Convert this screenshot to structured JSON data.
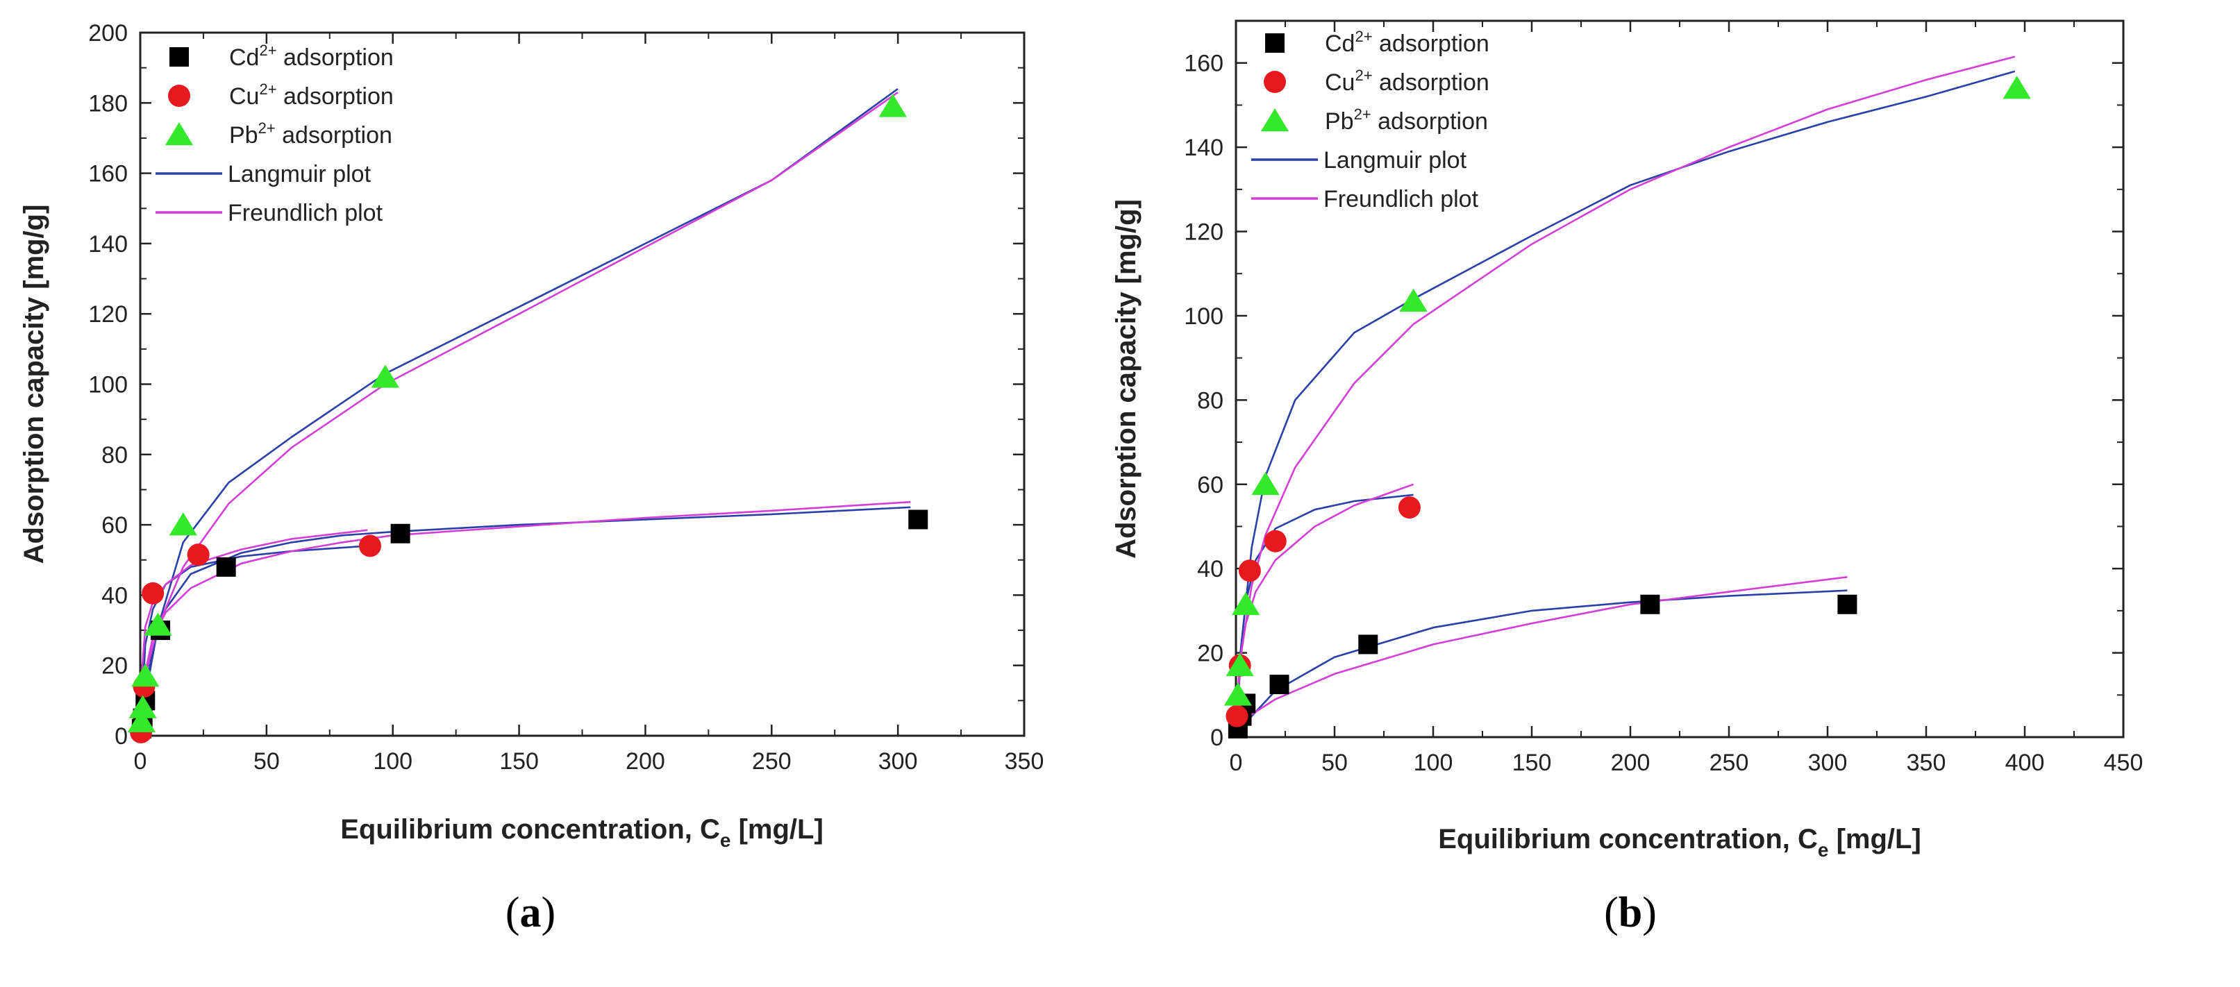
{
  "chart_data": [
    {
      "type": "scatter",
      "panel_label": "a",
      "xlabel": "Equilibrium concentration, C",
      "xlabel_sub": "e",
      "xlabel_unit": " [mg/L]",
      "ylabel": "Adsorption capacity [mg/g]",
      "xlim": [
        0,
        350
      ],
      "ylim": [
        0,
        200
      ],
      "xticks": [
        0,
        50,
        100,
        150,
        200,
        250,
        300,
        350
      ],
      "yticks": [
        0,
        20,
        40,
        60,
        80,
        100,
        120,
        140,
        160,
        180,
        200
      ],
      "legend_position": "top-left",
      "series": [
        {
          "name": "Cd",
          "sup": "2+",
          "label_rest": " adsorption",
          "marker": "square",
          "color": "#000000",
          "x": [
            0.5,
            1,
            2,
            8,
            34,
            103,
            308
          ],
          "y": [
            2,
            5,
            10,
            30,
            48,
            57.5,
            61.5
          ]
        },
        {
          "name": "Cu",
          "sup": "2+",
          "label_rest": " adsorption",
          "marker": "circle",
          "color": "#e8191e",
          "x": [
            0.3,
            1.5,
            5,
            23,
            91
          ],
          "y": [
            1,
            14,
            40.5,
            51.5,
            54
          ]
        },
        {
          "name": "Pb",
          "sup": "2+",
          "label_rest": " adsorption",
          "marker": "triangle",
          "color": "#35e82b",
          "x": [
            0.5,
            1,
            2,
            7,
            17,
            97,
            298
          ],
          "y": [
            4,
            8,
            17,
            31.5,
            60,
            102,
            179
          ]
        }
      ],
      "fits": [
        {
          "name": "Langmuir plot",
          "color": "#2b3fa8",
          "curves": [
            {
              "x": [
                0,
                2,
                5,
                10,
                20,
                40,
                60,
                80,
                100,
                150,
                200,
                250,
                305
              ],
              "y": [
                0,
                12,
                25,
                36,
                46,
                52,
                55,
                57,
                58,
                60,
                61.5,
                63,
                65
              ]
            },
            {
              "x": [
                0,
                2,
                5,
                10,
                20,
                40,
                60,
                90
              ],
              "y": [
                0,
                26,
                36,
                43,
                48,
                51,
                52.5,
                54
              ]
            },
            {
              "x": [
                0,
                3,
                7,
                17,
                35,
                60,
                97,
                150,
                200,
                250,
                300
              ],
              "y": [
                0,
                15,
                31,
                55,
                72,
                85,
                103,
                122,
                140,
                158,
                184
              ]
            }
          ]
        },
        {
          "name": "Freundlich plot",
          "color": "#d33fd6",
          "curves": [
            {
              "x": [
                0.5,
                2,
                5,
                10,
                20,
                40,
                60,
                80,
                100,
                150,
                200,
                250,
                305
              ],
              "y": [
                8,
                18,
                28,
                35,
                42,
                49,
                52.5,
                55,
                57,
                59.5,
                62,
                64,
                66.5
              ]
            },
            {
              "x": [
                0.3,
                2,
                5,
                10,
                20,
                40,
                60,
                90
              ],
              "y": [
                15,
                31,
                38,
                43,
                48.5,
                53,
                56,
                58.5
              ]
            },
            {
              "x": [
                0.5,
                3,
                7,
                17,
                35,
                60,
                97,
                150,
                200,
                250,
                300
              ],
              "y": [
                5,
                20,
                31,
                48,
                66,
                82,
                100,
                120,
                139,
                158,
                183
              ]
            }
          ]
        }
      ]
    },
    {
      "type": "scatter",
      "panel_label": "b",
      "xlabel": "Equilibrium concentration, C",
      "xlabel_sub": "e",
      "xlabel_unit": " [mg/L]",
      "ylabel": "Adsorption capacity [mg/g]",
      "xlim": [
        0,
        450
      ],
      "ylim": [
        0,
        170
      ],
      "xticks": [
        0,
        50,
        100,
        150,
        200,
        250,
        300,
        350,
        400,
        450
      ],
      "yticks": [
        0,
        20,
        40,
        60,
        80,
        100,
        120,
        140,
        160
      ],
      "legend_position": "top-left",
      "series": [
        {
          "name": "Cd",
          "sup": "2+",
          "label_rest": " adsorption",
          "marker": "square",
          "color": "#000000",
          "x": [
            1,
            3,
            5,
            22,
            67,
            210,
            310
          ],
          "y": [
            2,
            5,
            8,
            12.5,
            22,
            31.5,
            31.5
          ]
        },
        {
          "name": "Cu",
          "sup": "2+",
          "label_rest": " adsorption",
          "marker": "circle",
          "color": "#e8191e",
          "x": [
            0.5,
            2,
            7,
            20,
            88
          ],
          "y": [
            5,
            17,
            39.5,
            46.5,
            54.5
          ]
        },
        {
          "name": "Pb",
          "sup": "2+",
          "label_rest": " adsorption",
          "marker": "triangle",
          "color": "#35e82b",
          "x": [
            1,
            2,
            5,
            15,
            90,
            396
          ],
          "y": [
            10,
            17,
            31.5,
            60,
            103.5,
            154
          ]
        }
      ],
      "fits": [
        {
          "name": "Langmuir plot",
          "color": "#2b3fa8",
          "curves": [
            {
              "x": [
                0,
                5,
                20,
                50,
                100,
                150,
                200,
                250,
                310
              ],
              "y": [
                0,
                3.5,
                11,
                19,
                26,
                30,
                32,
                33.5,
                34.8
              ]
            },
            {
              "x": [
                0,
                2,
                5,
                10,
                20,
                40,
                60,
                90
              ],
              "y": [
                0,
                19,
                32,
                42,
                49.5,
                54,
                56,
                57.5
              ]
            },
            {
              "x": [
                0,
                3,
                8,
                15,
                30,
                60,
                90,
                150,
                200,
                250,
                300,
                350,
                395
              ],
              "y": [
                0,
                23,
                45,
                62,
                80,
                96,
                104,
                119,
                131,
                139,
                146,
                152,
                158
              ]
            }
          ]
        },
        {
          "name": "Freundlich plot",
          "color": "#d33fd6",
          "curves": [
            {
              "x": [
                1,
                5,
                20,
                50,
                100,
                150,
                200,
                250,
                310
              ],
              "y": [
                2,
                4.5,
                9,
                15,
                22,
                27,
                31.5,
                34.5,
                38
              ]
            },
            {
              "x": [
                0.5,
                2,
                5,
                10,
                20,
                40,
                60,
                90
              ],
              "y": [
                8,
                18,
                27,
                34.5,
                42,
                50,
                55,
                60
              ]
            },
            {
              "x": [
                1,
                3,
                8,
                15,
                30,
                60,
                90,
                150,
                200,
                250,
                300,
                350,
                395
              ],
              "y": [
                10,
                21,
                36,
                48,
                64,
                84,
                98,
                117,
                130,
                140,
                149,
                156,
                161.5
              ]
            }
          ]
        }
      ]
    }
  ]
}
